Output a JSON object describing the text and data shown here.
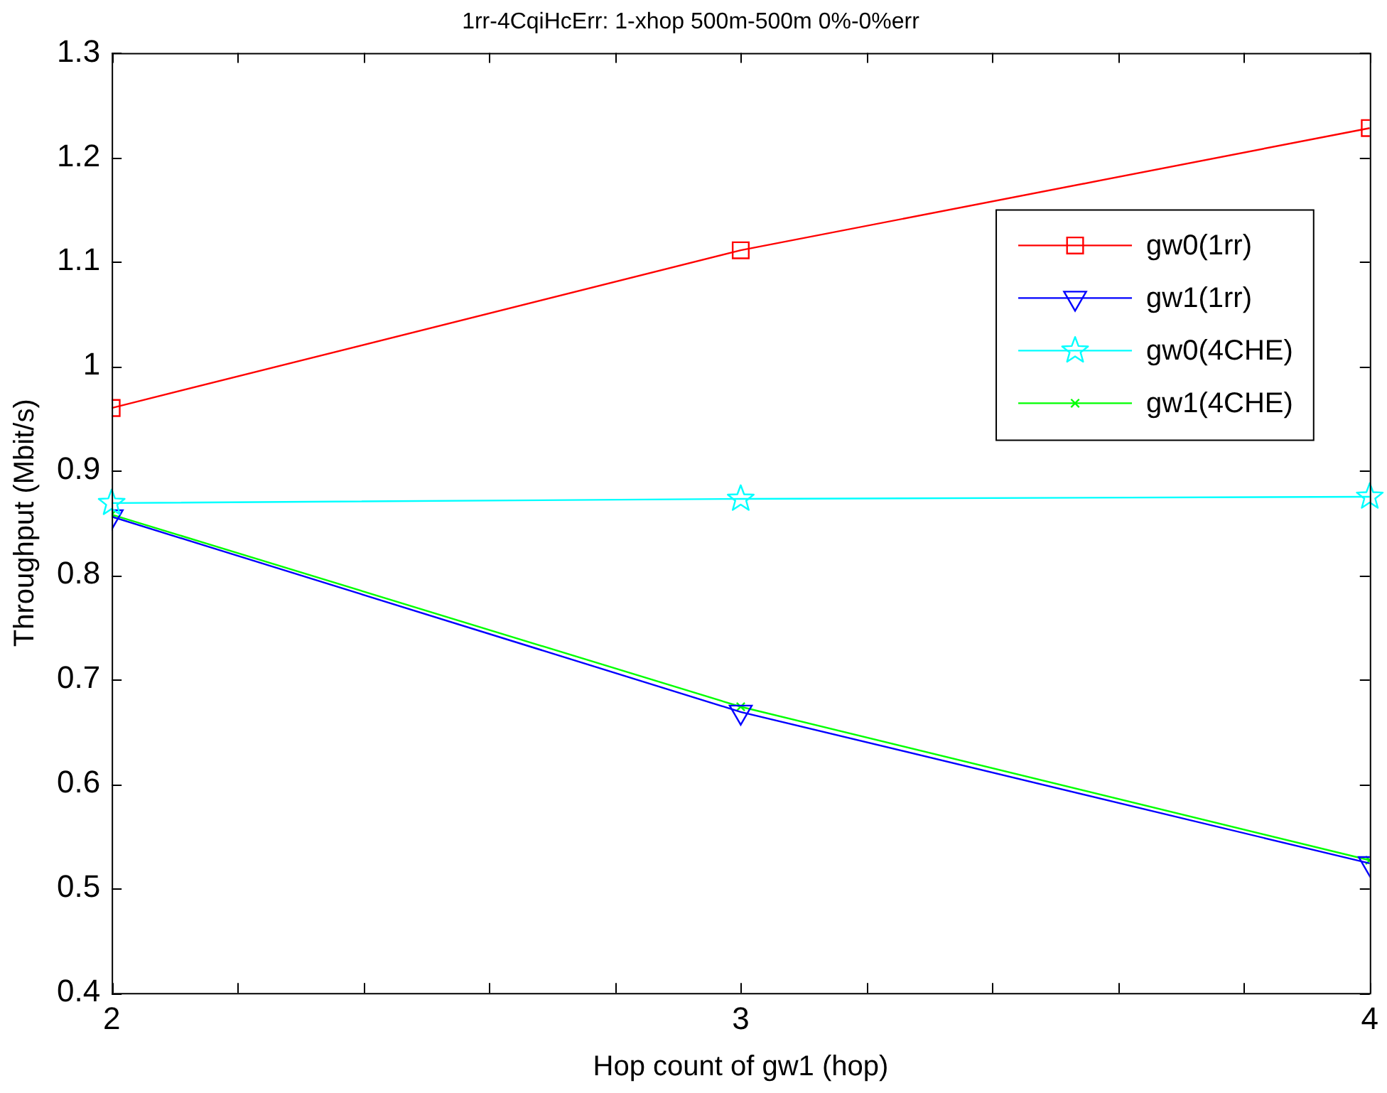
{
  "chart_data": {
    "type": "line",
    "title": "1rr-4CqiHcErr: 1-xhop 500m-500m 0%-0%err",
    "xlabel": "Hop count of gw1 (hop)",
    "ylabel": "Throughput (Mbit/s)",
    "x": [
      2,
      3,
      4
    ],
    "series": [
      {
        "name": "gw0(1rr)",
        "color": "#ff0000",
        "marker": "square",
        "values": [
          0.96,
          1.111,
          1.228
        ]
      },
      {
        "name": "gw1(1rr)",
        "color": "#0000ff",
        "marker": "triangle",
        "values": [
          0.856,
          0.669,
          0.524
        ]
      },
      {
        "name": "gw0(4CHE)",
        "color": "#00ffff",
        "marker": "star",
        "values": [
          0.869,
          0.873,
          0.875
        ]
      },
      {
        "name": "gw1(4CHE)",
        "color": "#00ff00",
        "marker": "cross",
        "values": [
          0.858,
          0.674,
          0.527
        ]
      }
    ],
    "xlim": [
      2,
      4
    ],
    "xticks": [
      2,
      {
        "value": 2.2,
        "label": null
      },
      {
        "value": 2.4,
        "label": null
      },
      {
        "value": 2.6,
        "label": null
      },
      {
        "value": 2.8,
        "label": null
      },
      3,
      {
        "value": 3.2,
        "label": null
      },
      {
        "value": 3.4,
        "label": null
      },
      {
        "value": 3.6,
        "label": null
      },
      {
        "value": 3.8,
        "label": null
      },
      4
    ],
    "ylim": [
      0.4,
      1.3
    ],
    "yticks": [
      0.4,
      0.5,
      0.6,
      0.7,
      0.8,
      0.9,
      1,
      1.1,
      1.2,
      1.3
    ],
    "legend": "top right",
    "line_style": "solid"
  }
}
